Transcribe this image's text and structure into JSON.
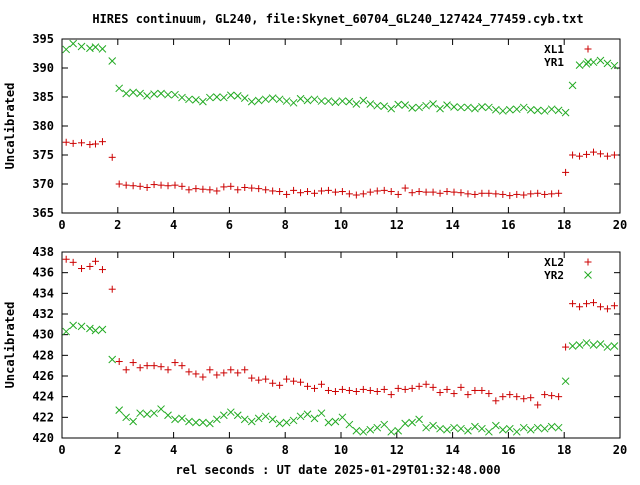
{
  "title": "HIRES continuum, GL240, file:Skynet_60704_GL240_127424_77459.cyb.txt",
  "xlabel": "rel seconds : UT date 2025-01-29T01:32:48.000",
  "colors": {
    "red_series": "#cc0000",
    "green_series": "#22aa22",
    "axis": "#000000"
  },
  "chart_data": [
    {
      "type": "scatter",
      "title": "HIRES continuum, GL240, file:Skynet_60704_GL240_127424_77459.cyb.txt",
      "xlabel": "",
      "ylabel": "Uncalibrated",
      "xlim": [
        0,
        20
      ],
      "ylim": [
        365,
        395
      ],
      "xticks": [
        "0",
        "2",
        "4",
        "6",
        "8",
        "10",
        "12",
        "14",
        "16",
        "18",
        "20"
      ],
      "yticks": [
        "365",
        "370",
        "375",
        "380",
        "385",
        "390",
        "395"
      ],
      "legend_position": "top-right",
      "grid": false,
      "series": [
        {
          "name": "XL1",
          "marker": "plus",
          "color": "#cc0000",
          "x": [
            0.15,
            0.4,
            0.7,
            1.0,
            1.2,
            1.45,
            1.8,
            2.05,
            2.3,
            2.55,
            2.8,
            3.05,
            3.3,
            3.55,
            3.8,
            4.05,
            4.3,
            4.55,
            4.8,
            5.05,
            5.3,
            5.55,
            5.8,
            6.05,
            6.3,
            6.55,
            6.8,
            7.05,
            7.3,
            7.55,
            7.8,
            8.05,
            8.3,
            8.55,
            8.8,
            9.05,
            9.3,
            9.55,
            9.8,
            10.05,
            10.3,
            10.55,
            10.8,
            11.05,
            11.3,
            11.55,
            11.8,
            12.05,
            12.3,
            12.55,
            12.8,
            13.05,
            13.3,
            13.55,
            13.8,
            14.05,
            14.3,
            14.55,
            14.8,
            15.05,
            15.3,
            15.55,
            15.8,
            16.05,
            16.3,
            16.55,
            16.8,
            17.05,
            17.3,
            17.55,
            17.8,
            18.05,
            18.3,
            18.55,
            18.8,
            19.05,
            19.3,
            19.55,
            19.8
          ],
          "y": [
            377.2,
            377.0,
            377.1,
            376.8,
            376.9,
            377.3,
            374.6,
            370.0,
            369.8,
            369.7,
            369.6,
            369.4,
            369.9,
            369.8,
            369.7,
            369.8,
            369.6,
            369.0,
            369.2,
            369.1,
            369.0,
            368.8,
            369.5,
            369.6,
            369.0,
            369.4,
            369.3,
            369.2,
            369.0,
            368.8,
            368.7,
            368.2,
            368.9,
            368.5,
            368.7,
            368.4,
            368.8,
            368.9,
            368.6,
            368.7,
            368.3,
            368.1,
            368.3,
            368.6,
            368.8,
            368.9,
            368.7,
            368.2,
            369.3,
            368.5,
            368.7,
            368.6,
            368.6,
            368.4,
            368.7,
            368.6,
            368.5,
            368.3,
            368.2,
            368.4,
            368.4,
            368.3,
            368.2,
            368.0,
            368.2,
            368.1,
            368.3,
            368.4,
            368.2,
            368.3,
            368.4,
            372.0,
            375.0,
            374.8,
            375.1,
            375.5,
            375.2,
            374.8,
            375.0
          ]
        },
        {
          "name": "YR1",
          "marker": "cross",
          "color": "#22aa22",
          "x": [
            0.15,
            0.4,
            0.7,
            1.0,
            1.2,
            1.45,
            1.8,
            2.05,
            2.3,
            2.55,
            2.8,
            3.05,
            3.3,
            3.55,
            3.8,
            4.05,
            4.3,
            4.55,
            4.8,
            5.05,
            5.3,
            5.55,
            5.8,
            6.05,
            6.3,
            6.55,
            6.8,
            7.05,
            7.3,
            7.55,
            7.8,
            8.05,
            8.3,
            8.55,
            8.8,
            9.05,
            9.3,
            9.55,
            9.8,
            10.05,
            10.3,
            10.55,
            10.8,
            11.05,
            11.3,
            11.55,
            11.8,
            12.05,
            12.3,
            12.55,
            12.8,
            13.05,
            13.3,
            13.55,
            13.8,
            14.05,
            14.3,
            14.55,
            14.8,
            15.05,
            15.3,
            15.55,
            15.8,
            16.05,
            16.3,
            16.55,
            16.8,
            17.05,
            17.3,
            17.55,
            17.8,
            18.05,
            18.3,
            18.55,
            18.8,
            19.05,
            19.3,
            19.55,
            19.8
          ],
          "y": [
            393.2,
            394.2,
            393.7,
            393.4,
            393.6,
            393.3,
            391.2,
            386.5,
            385.6,
            385.8,
            385.6,
            385.2,
            385.5,
            385.6,
            385.4,
            385.4,
            384.9,
            384.6,
            384.5,
            384.2,
            384.9,
            385.0,
            384.9,
            385.3,
            385.2,
            384.8,
            384.2,
            384.4,
            384.6,
            384.8,
            384.6,
            384.3,
            384.0,
            384.7,
            384.4,
            384.6,
            384.3,
            384.3,
            384.1,
            384.3,
            384.2,
            383.8,
            384.4,
            383.8,
            383.5,
            383.4,
            383.0,
            383.7,
            383.6,
            383.1,
            383.2,
            383.5,
            383.8,
            383.0,
            383.6,
            383.3,
            383.2,
            383.2,
            383.0,
            383.3,
            383.2,
            382.8,
            382.6,
            382.8,
            382.9,
            383.2,
            382.8,
            382.7,
            382.6,
            382.9,
            382.7,
            382.3,
            387.0,
            390.5,
            390.7,
            391.0,
            391.3,
            390.8,
            390.4
          ]
        }
      ]
    },
    {
      "type": "scatter",
      "title": "",
      "xlabel": "rel seconds : UT date 2025-01-29T01:32:48.000",
      "ylabel": "Uncalibrated",
      "xlim": [
        0,
        20
      ],
      "ylim": [
        420,
        438
      ],
      "xticks": [
        "0",
        "2",
        "4",
        "6",
        "8",
        "10",
        "12",
        "14",
        "16",
        "18",
        "20"
      ],
      "yticks": [
        "420",
        "422",
        "424",
        "426",
        "428",
        "430",
        "432",
        "434",
        "436",
        "438"
      ],
      "legend_position": "top-right",
      "grid": false,
      "series": [
        {
          "name": "XL2",
          "marker": "plus",
          "color": "#cc0000",
          "x": [
            0.15,
            0.4,
            0.7,
            1.0,
            1.2,
            1.45,
            1.8,
            2.05,
            2.3,
            2.55,
            2.8,
            3.05,
            3.3,
            3.55,
            3.8,
            4.05,
            4.3,
            4.55,
            4.8,
            5.05,
            5.3,
            5.55,
            5.8,
            6.05,
            6.3,
            6.55,
            6.8,
            7.05,
            7.3,
            7.55,
            7.8,
            8.05,
            8.3,
            8.55,
            8.8,
            9.05,
            9.3,
            9.55,
            9.8,
            10.05,
            10.3,
            10.55,
            10.8,
            11.05,
            11.3,
            11.55,
            11.8,
            12.05,
            12.3,
            12.55,
            12.8,
            13.05,
            13.3,
            13.55,
            13.8,
            14.05,
            14.3,
            14.55,
            14.8,
            15.05,
            15.3,
            15.55,
            15.8,
            16.05,
            16.3,
            16.55,
            16.8,
            17.05,
            17.3,
            17.55,
            17.8,
            18.05,
            18.3,
            18.55,
            18.8,
            19.05,
            19.3,
            19.55,
            19.8
          ],
          "y": [
            437.3,
            437.0,
            436.4,
            436.6,
            437.1,
            436.3,
            434.4,
            427.4,
            426.6,
            427.3,
            426.8,
            427.0,
            427.0,
            426.9,
            426.6,
            427.3,
            427.0,
            426.4,
            426.2,
            425.9,
            426.6,
            426.1,
            426.3,
            426.6,
            426.3,
            426.6,
            425.8,
            425.6,
            425.7,
            425.3,
            425.1,
            425.7,
            425.5,
            425.4,
            425.0,
            424.8,
            425.2,
            424.6,
            424.5,
            424.7,
            424.6,
            424.5,
            424.7,
            424.6,
            424.5,
            424.7,
            424.2,
            424.8,
            424.7,
            424.8,
            425.0,
            425.2,
            424.9,
            424.4,
            424.7,
            424.3,
            424.9,
            424.2,
            424.6,
            424.6,
            424.3,
            423.6,
            424.0,
            424.2,
            424.0,
            423.8,
            423.9,
            423.2,
            424.2,
            424.1,
            424.0,
            428.8,
            433.0,
            432.7,
            433.0,
            433.1,
            432.7,
            432.5,
            432.8
          ]
        },
        {
          "name": "YR2",
          "marker": "cross",
          "color": "#22aa22",
          "x": [
            0.15,
            0.4,
            0.7,
            1.0,
            1.2,
            1.45,
            1.8,
            2.05,
            2.3,
            2.55,
            2.8,
            3.05,
            3.3,
            3.55,
            3.8,
            4.05,
            4.3,
            4.55,
            4.8,
            5.05,
            5.3,
            5.55,
            5.8,
            6.05,
            6.3,
            6.55,
            6.8,
            7.05,
            7.3,
            7.55,
            7.8,
            8.05,
            8.3,
            8.55,
            8.8,
            9.05,
            9.3,
            9.55,
            9.8,
            10.05,
            10.3,
            10.55,
            10.8,
            11.05,
            11.3,
            11.55,
            11.8,
            12.05,
            12.3,
            12.55,
            12.8,
            13.05,
            13.3,
            13.55,
            13.8,
            14.05,
            14.3,
            14.55,
            14.8,
            15.05,
            15.3,
            15.55,
            15.8,
            16.05,
            16.3,
            16.55,
            16.8,
            17.05,
            17.3,
            17.55,
            17.8,
            18.05,
            18.3,
            18.55,
            18.8,
            19.05,
            19.3,
            19.55,
            19.8
          ],
          "y": [
            430.3,
            430.9,
            430.8,
            430.6,
            430.4,
            430.5,
            427.6,
            422.7,
            422.0,
            421.6,
            422.4,
            422.3,
            422.4,
            422.8,
            422.2,
            421.8,
            421.9,
            421.6,
            421.5,
            421.5,
            421.4,
            421.8,
            422.2,
            422.5,
            422.2,
            421.8,
            421.6,
            421.9,
            422.1,
            421.8,
            421.4,
            421.5,
            421.7,
            422.1,
            422.3,
            421.9,
            422.4,
            421.5,
            421.6,
            422.0,
            421.3,
            420.7,
            420.6,
            420.8,
            421.0,
            421.3,
            420.6,
            420.7,
            421.4,
            421.5,
            421.8,
            421.0,
            421.2,
            420.9,
            420.8,
            421.0,
            420.9,
            420.7,
            421.1,
            420.9,
            420.6,
            421.2,
            420.8,
            420.9,
            420.6,
            421.0,
            420.8,
            421.0,
            420.9,
            421.1,
            421.0,
            425.5,
            428.9,
            429.0,
            429.2,
            429.0,
            429.1,
            428.8,
            428.9
          ]
        }
      ]
    }
  ]
}
